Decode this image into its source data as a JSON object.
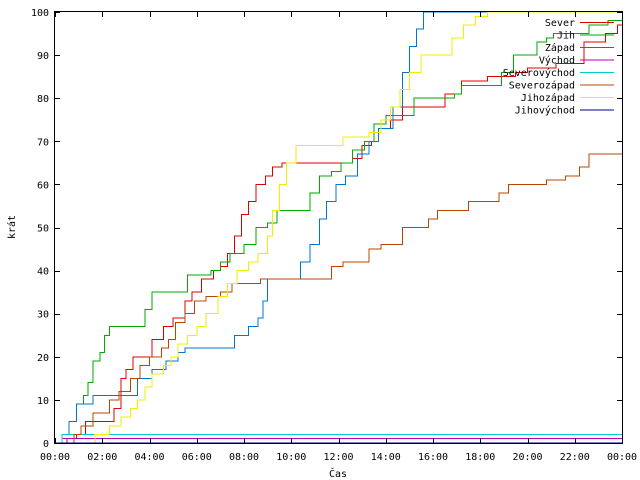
{
  "chart_data": {
    "type": "line",
    "title": "",
    "xlabel": "Čas",
    "ylabel": "krát",
    "xlim": [
      0,
      24
    ],
    "ylim": [
      0,
      100
    ],
    "x_ticks": [
      0,
      2,
      4,
      6,
      8,
      10,
      12,
      14,
      16,
      18,
      20,
      22,
      24
    ],
    "x_tick_labels": [
      "00:00",
      "02:00",
      "04:00",
      "06:00",
      "08:00",
      "10:00",
      "12:00",
      "14:00",
      "16:00",
      "18:00",
      "20:00",
      "22:00",
      "00:00"
    ],
    "y_ticks": [
      0,
      10,
      20,
      30,
      40,
      50,
      60,
      70,
      80,
      90,
      100
    ],
    "y_tick_labels": [
      "0",
      "10",
      "20",
      "30",
      "40",
      "50",
      "60",
      "70",
      "80",
      "90",
      "100"
    ],
    "grid": false,
    "legend_position": "top-right",
    "series": [
      {
        "name": "Sever",
        "color": "#dd0000",
        "points": [
          [
            0,
            0
          ],
          [
            0.5,
            1
          ],
          [
            0.9,
            2
          ],
          [
            1.3,
            5
          ],
          [
            2.5,
            8
          ],
          [
            2.8,
            15
          ],
          [
            3.0,
            17
          ],
          [
            3.3,
            20
          ],
          [
            3.8,
            20
          ],
          [
            4.1,
            24
          ],
          [
            4.6,
            27
          ],
          [
            5.0,
            29
          ],
          [
            5.5,
            33
          ],
          [
            5.8,
            35
          ],
          [
            6.2,
            38
          ],
          [
            6.7,
            40
          ],
          [
            7.0,
            41
          ],
          [
            7.3,
            44
          ],
          [
            7.6,
            48
          ],
          [
            7.9,
            53
          ],
          [
            8.2,
            56
          ],
          [
            8.5,
            60
          ],
          [
            8.9,
            62
          ],
          [
            9.2,
            64
          ],
          [
            9.6,
            65
          ],
          [
            12.2,
            65
          ],
          [
            12.6,
            66
          ],
          [
            13.0,
            69
          ],
          [
            13.4,
            70
          ],
          [
            13.7,
            73
          ],
          [
            14.2,
            75
          ],
          [
            14.7,
            78
          ],
          [
            16.0,
            78
          ],
          [
            16.5,
            81
          ],
          [
            17.2,
            84
          ],
          [
            18.3,
            85
          ],
          [
            19.5,
            86
          ],
          [
            20.0,
            87
          ],
          [
            21.2,
            88
          ],
          [
            22.4,
            93
          ],
          [
            23.3,
            95
          ],
          [
            23.8,
            97
          ],
          [
            24,
            97
          ]
        ]
      },
      {
        "name": "Jih",
        "color": "#00aa00",
        "points": [
          [
            0,
            0
          ],
          [
            0.3,
            2
          ],
          [
            0.6,
            5
          ],
          [
            0.9,
            9
          ],
          [
            1.2,
            11
          ],
          [
            1.4,
            14
          ],
          [
            1.6,
            19
          ],
          [
            1.9,
            21
          ],
          [
            2.1,
            25
          ],
          [
            2.3,
            27
          ],
          [
            3.5,
            27
          ],
          [
            3.8,
            31
          ],
          [
            4.1,
            35
          ],
          [
            5.2,
            35
          ],
          [
            5.6,
            39
          ],
          [
            6.2,
            39
          ],
          [
            6.6,
            40
          ],
          [
            7.0,
            42
          ],
          [
            7.4,
            44
          ],
          [
            8.0,
            46
          ],
          [
            8.5,
            50
          ],
          [
            9.0,
            51
          ],
          [
            9.4,
            54
          ],
          [
            10.5,
            54
          ],
          [
            10.8,
            58
          ],
          [
            11.2,
            62
          ],
          [
            11.7,
            63
          ],
          [
            12.1,
            65
          ],
          [
            12.6,
            68
          ],
          [
            13.1,
            70
          ],
          [
            13.5,
            74
          ],
          [
            14.0,
            76
          ],
          [
            14.8,
            76
          ],
          [
            15.2,
            80
          ],
          [
            15.8,
            80
          ],
          [
            16.5,
            80
          ],
          [
            16.9,
            81
          ],
          [
            17.2,
            83
          ],
          [
            18.3,
            83
          ],
          [
            18.9,
            86
          ],
          [
            19.4,
            90
          ],
          [
            20.4,
            93
          ],
          [
            20.8,
            94
          ],
          [
            21.1,
            95
          ],
          [
            22.0,
            95
          ],
          [
            22.6,
            97
          ],
          [
            23.4,
            98
          ],
          [
            24,
            98
          ]
        ]
      },
      {
        "name": "Západ",
        "color": "#0077cc",
        "points": [
          [
            0,
            0
          ],
          [
            0.3,
            2
          ],
          [
            0.6,
            5
          ],
          [
            0.9,
            9
          ],
          [
            1.3,
            9
          ],
          [
            1.6,
            11
          ],
          [
            3.2,
            11
          ],
          [
            3.5,
            15
          ],
          [
            4.1,
            17
          ],
          [
            4.7,
            19
          ],
          [
            5.2,
            21
          ],
          [
            5.5,
            22
          ],
          [
            7.3,
            22
          ],
          [
            7.6,
            25
          ],
          [
            8.2,
            27
          ],
          [
            8.6,
            29
          ],
          [
            8.8,
            33
          ],
          [
            9.0,
            38
          ],
          [
            10.1,
            38
          ],
          [
            10.4,
            42
          ],
          [
            10.8,
            46
          ],
          [
            11.2,
            52
          ],
          [
            11.5,
            56
          ],
          [
            11.9,
            60
          ],
          [
            12.3,
            62
          ],
          [
            12.8,
            67
          ],
          [
            13.3,
            70
          ],
          [
            13.7,
            73
          ],
          [
            14.3,
            78
          ],
          [
            14.7,
            86
          ],
          [
            15.0,
            92
          ],
          [
            15.3,
            96
          ],
          [
            15.6,
            100
          ],
          [
            24,
            100
          ]
        ]
      },
      {
        "name": "Východ",
        "color": "#bb00bb",
        "points": [
          [
            0,
            0
          ],
          [
            0.2,
            0
          ],
          [
            0.3,
            1
          ],
          [
            24,
            1
          ]
        ]
      },
      {
        "name": "Severovýchod",
        "color": "#00cccc",
        "points": [
          [
            0,
            0
          ],
          [
            0.2,
            0
          ],
          [
            0.3,
            2
          ],
          [
            24,
            2
          ]
        ]
      },
      {
        "name": "Severozápad",
        "color": "#bb4400",
        "points": [
          [
            0,
            0
          ],
          [
            0.6,
            0
          ],
          [
            0.8,
            2
          ],
          [
            1.1,
            4
          ],
          [
            1.6,
            7
          ],
          [
            2.3,
            10
          ],
          [
            2.7,
            12
          ],
          [
            3.2,
            15
          ],
          [
            3.6,
            18
          ],
          [
            4.0,
            20
          ],
          [
            4.5,
            22
          ],
          [
            4.8,
            24
          ],
          [
            5.1,
            28
          ],
          [
            5.5,
            30
          ],
          [
            5.9,
            33
          ],
          [
            6.4,
            34
          ],
          [
            7.0,
            35
          ],
          [
            7.5,
            37
          ],
          [
            8.2,
            37
          ],
          [
            8.7,
            38
          ],
          [
            11.2,
            38
          ],
          [
            11.7,
            41
          ],
          [
            12.2,
            42
          ],
          [
            12.8,
            42
          ],
          [
            13.3,
            45
          ],
          [
            13.8,
            46
          ],
          [
            14.2,
            46
          ],
          [
            14.7,
            50
          ],
          [
            15.3,
            50
          ],
          [
            15.8,
            52
          ],
          [
            16.2,
            54
          ],
          [
            17.0,
            54
          ],
          [
            17.5,
            56
          ],
          [
            18.3,
            56
          ],
          [
            18.8,
            58
          ],
          [
            19.2,
            60
          ],
          [
            20.2,
            60
          ],
          [
            20.8,
            61
          ],
          [
            21.6,
            62
          ],
          [
            22.2,
            64
          ],
          [
            22.6,
            67
          ],
          [
            24,
            67
          ]
        ]
      },
      {
        "name": "Jihozápad",
        "color": "#eeee00",
        "points": [
          [
            0,
            0
          ],
          [
            1.5,
            0
          ],
          [
            1.7,
            2
          ],
          [
            2.0,
            2
          ],
          [
            2.3,
            4
          ],
          [
            2.8,
            6
          ],
          [
            3.2,
            8
          ],
          [
            3.5,
            10
          ],
          [
            3.8,
            13
          ],
          [
            4.1,
            16
          ],
          [
            4.6,
            18
          ],
          [
            4.9,
            20
          ],
          [
            5.2,
            23
          ],
          [
            5.6,
            25
          ],
          [
            6.0,
            27
          ],
          [
            6.4,
            30
          ],
          [
            6.9,
            34
          ],
          [
            7.3,
            37
          ],
          [
            7.7,
            40
          ],
          [
            8.2,
            42
          ],
          [
            8.6,
            44
          ],
          [
            9.0,
            48
          ],
          [
            9.2,
            54
          ],
          [
            9.5,
            60
          ],
          [
            9.8,
            65
          ],
          [
            10.2,
            69
          ],
          [
            11.8,
            69
          ],
          [
            12.2,
            71
          ],
          [
            12.8,
            71
          ],
          [
            13.3,
            72
          ],
          [
            13.8,
            75
          ],
          [
            14.2,
            78
          ],
          [
            14.6,
            82
          ],
          [
            15.0,
            86
          ],
          [
            15.5,
            90
          ],
          [
            16.2,
            90
          ],
          [
            16.8,
            94
          ],
          [
            17.3,
            97
          ],
          [
            17.8,
            99
          ],
          [
            18.3,
            100
          ],
          [
            24,
            100
          ]
        ]
      },
      {
        "name": "Jihovýchod",
        "color": "#000088",
        "points": [
          [
            0,
            0
          ],
          [
            24,
            0
          ]
        ]
      }
    ]
  }
}
